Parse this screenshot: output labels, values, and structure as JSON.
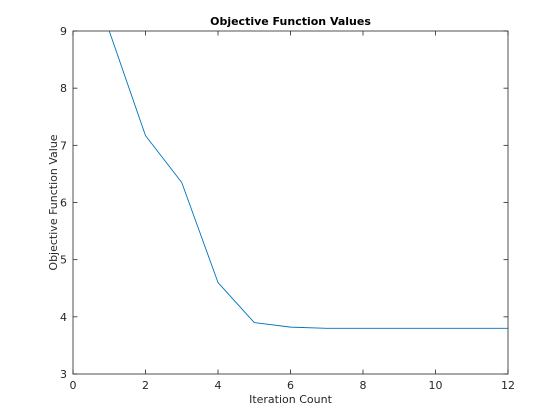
{
  "chart_data": {
    "type": "line",
    "title": "Objective Function Values",
    "xlabel": "Iteration Count",
    "ylabel": "Objective Function Value",
    "xlim": [
      0,
      12
    ],
    "ylim": [
      3,
      9
    ],
    "xticks": [
      0,
      2,
      4,
      6,
      8,
      10,
      12
    ],
    "yticks": [
      3,
      4,
      5,
      6,
      7,
      8,
      9
    ],
    "grid": false,
    "series": [
      {
        "color": "#0072bd",
        "x": [
          1,
          2,
          3,
          4,
          5,
          6,
          7,
          8,
          9,
          10,
          11,
          12
        ],
        "y": [
          9.0,
          7.17,
          6.35,
          4.6,
          3.9,
          3.82,
          3.8,
          3.8,
          3.8,
          3.8,
          3.8,
          3.8
        ]
      }
    ]
  }
}
